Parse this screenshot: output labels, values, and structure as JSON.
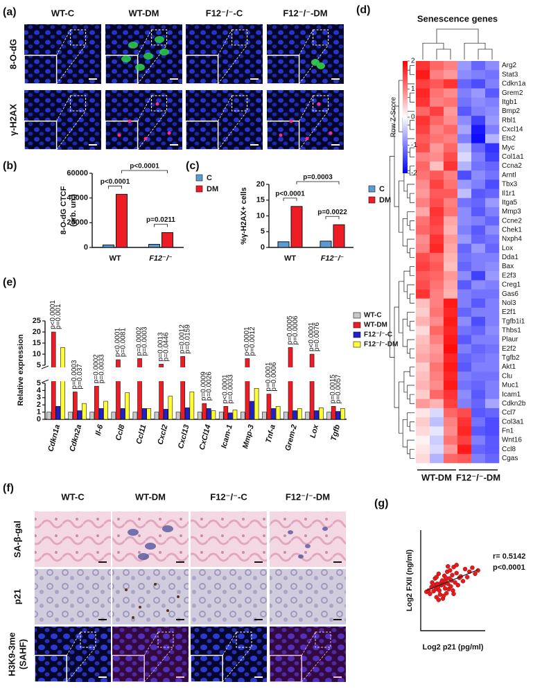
{
  "panel_labels": [
    "(a)",
    "(b)",
    "(c)",
    "(d)",
    "(e)",
    "(f)",
    "(g)"
  ],
  "panel_a": {
    "columns": [
      "WT-C",
      "WT-DM",
      "F12⁻/⁻-C",
      "F12⁻/⁻-DM"
    ],
    "rows": [
      "8-O-dG",
      "γ-H2AX"
    ]
  },
  "panel_f": {
    "columns": [
      "WT-C",
      "WT-DM",
      "F12⁻/⁻-C",
      "F12⁻/⁻-DM"
    ],
    "rows": [
      [
        "SA-β-gal"
      ],
      [
        "p21"
      ],
      [
        "H3K9-3me",
        "(SAHF)"
      ]
    ]
  },
  "chart_data": [
    {
      "type": "bar",
      "categories": [
        "WT",
        "F12⁻/⁻"
      ],
      "series": [
        {
          "name": "C",
          "color": "#5b9bd5",
          "values": [
            2000,
            2500
          ]
        },
        {
          "name": "DM",
          "color": "#ee1c25",
          "values": [
            43000,
            12000
          ]
        }
      ],
      "ylim": [
        0,
        60000
      ],
      "yticks": [
        0,
        20000,
        40000,
        60000
      ],
      "y_label": [
        "8-O-dG CTCF",
        "(arb. un.)"
      ],
      "annotations": [
        "p<0.0001",
        "p=0.0211",
        "p<0.0001"
      ]
    },
    {
      "type": "bar",
      "categories": [
        "WT",
        "F12⁻/⁻"
      ],
      "series": [
        {
          "name": "C",
          "color": "#5b9bd5",
          "values": [
            1.8,
            2.0
          ]
        },
        {
          "name": "DM",
          "color": "#ee1c25",
          "values": [
            13.0,
            7.2
          ]
        }
      ],
      "ylim": [
        0,
        20
      ],
      "yticks": [
        0,
        5,
        10,
        15,
        20
      ],
      "y_label": [
        "%γ-H2AX+ cells"
      ],
      "annotations": [
        "p<0.0001",
        "p=0.0022",
        "p=0.0003"
      ]
    },
    {
      "type": "heatmap",
      "title": "Senescence genes",
      "colorbar_label": "Row Z-Score",
      "zlim": [
        -2,
        2
      ],
      "zticks": [
        2,
        1,
        0,
        -1,
        -2
      ],
      "colors": [
        "#0000ff",
        "#ffffff",
        "#ff0000"
      ],
      "column_groups": [
        "WT-DM",
        "F12⁻/⁻-DM"
      ],
      "rows": [
        "Arg2",
        "Stat3",
        "Cdkn1a",
        "Grem2",
        "Itgb1",
        "Bmp2",
        "Rbl1",
        "Cxcl14",
        "Ets2",
        "Myc",
        "Col1a1",
        "Ccna2",
        "Arntl",
        "Tbx3",
        "Il1r1",
        "Itga5",
        "Mmp3",
        "Ccne2",
        "Chek1",
        "Nxph4",
        "Lox",
        "Dda1",
        "Bax",
        "E2f3",
        "Creg1",
        "Gas6",
        "Nol3",
        "E2f1",
        "Tgfb1i1",
        "Thbs1",
        "Plaur",
        "E2f2",
        "Tgfb2",
        "Akt1",
        "Clu",
        "Muc1",
        "Icam1",
        "Cdkn2b",
        "Ccl7",
        "Col3a1",
        "Fn1",
        "Wnt16",
        "Ccl8",
        "Cgas"
      ],
      "values": [
        [
          1.6,
          1.2,
          1.0,
          -0.8,
          -1.2,
          -0.9
        ],
        [
          1.8,
          1.0,
          0.8,
          -0.9,
          -1.0,
          -1.1
        ],
        [
          1.5,
          1.3,
          1.6,
          -1.2,
          -1.4,
          -1.0
        ],
        [
          1.7,
          1.1,
          0.9,
          -1.0,
          -0.8,
          -1.3
        ],
        [
          1.6,
          1.0,
          1.1,
          -1.1,
          -0.9,
          -1.0
        ],
        [
          1.2,
          1.5,
          0.8,
          -1.3,
          -1.0,
          -0.9
        ],
        [
          1.6,
          1.2,
          0.9,
          -0.9,
          -1.5,
          -0.8
        ],
        [
          1.5,
          1.0,
          1.2,
          -0.7,
          -1.8,
          -1.0
        ],
        [
          1.3,
          1.1,
          1.0,
          -1.0,
          -1.9,
          -0.6
        ],
        [
          1.4,
          0.8,
          1.2,
          -0.5,
          -1.2,
          -1.6
        ],
        [
          1.0,
          0.9,
          1.4,
          -0.3,
          -1.0,
          -1.5
        ],
        [
          1.2,
          0.5,
          1.6,
          -0.6,
          -1.1,
          -1.2
        ],
        [
          1.1,
          1.3,
          1.0,
          -1.4,
          -0.9,
          -1.1
        ],
        [
          0.9,
          1.5,
          1.1,
          -0.8,
          -1.0,
          -1.4
        ],
        [
          0.8,
          1.3,
          1.3,
          -0.5,
          -1.3,
          -1.2
        ],
        [
          1.0,
          1.4,
          1.0,
          -1.1,
          -1.2,
          -0.8
        ],
        [
          0.7,
          1.6,
          1.1,
          -0.9,
          -1.3,
          -1.0
        ],
        [
          1.1,
          1.5,
          0.7,
          -0.9,
          -1.0,
          -1.2
        ],
        [
          1.2,
          1.4,
          0.6,
          -1.0,
          -1.3,
          -0.9
        ],
        [
          0.9,
          1.6,
          0.8,
          -0.8,
          -1.2,
          -1.1
        ],
        [
          1.0,
          1.7,
          0.7,
          -1.2,
          -0.8,
          -1.2
        ],
        [
          1.4,
          1.2,
          0.6,
          -1.1,
          -1.0,
          -1.0
        ],
        [
          1.5,
          1.3,
          0.5,
          -1.2,
          -1.0,
          -0.9
        ],
        [
          1.3,
          1.2,
          0.8,
          -0.9,
          -1.5,
          -0.8
        ],
        [
          1.4,
          1.1,
          0.7,
          -1.3,
          -0.9,
          -1.0
        ],
        [
          1.6,
          1.0,
          0.6,
          -1.0,
          -1.1,
          -1.1
        ],
        [
          0.5,
          1.0,
          1.8,
          -1.0,
          -1.3,
          -1.0
        ],
        [
          0.4,
          1.1,
          1.7,
          -1.2,
          -1.0,
          -1.0
        ],
        [
          0.6,
          0.9,
          1.8,
          -0.9,
          -1.4,
          -1.0
        ],
        [
          0.3,
          1.2,
          1.7,
          -1.1,
          -1.2,
          -0.9
        ],
        [
          0.5,
          1.0,
          1.8,
          -1.3,
          -1.0,
          -1.0
        ],
        [
          0.6,
          0.8,
          1.9,
          -1.0,
          -1.2,
          -1.1
        ],
        [
          0.7,
          0.9,
          1.7,
          -1.2,
          -1.1,
          -1.0
        ],
        [
          0.4,
          1.1,
          1.8,
          -1.3,
          -1.0,
          -1.0
        ],
        [
          0.5,
          1.0,
          1.7,
          -1.0,
          -1.1,
          -1.1
        ],
        [
          0.6,
          0.9,
          1.8,
          -1.1,
          -1.2,
          -1.0
        ],
        [
          0.4,
          1.2,
          1.6,
          -0.9,
          -1.3,
          -1.0
        ],
        [
          0.8,
          0.6,
          1.5,
          -1.0,
          -1.2,
          -0.7
        ],
        [
          0.2,
          -0.3,
          1.2,
          1.4,
          -1.3,
          -1.2
        ],
        [
          0.4,
          -0.5,
          1.0,
          1.6,
          -1.1,
          -1.4
        ],
        [
          0.3,
          -0.2,
          0.9,
          1.7,
          -1.3,
          -1.4
        ],
        [
          0.1,
          -0.4,
          1.1,
          1.5,
          -1.0,
          -1.3
        ],
        [
          0.2,
          -0.3,
          0.8,
          1.8,
          -1.2,
          -1.3
        ],
        [
          0.3,
          -0.6,
          1.2,
          1.3,
          -1.0,
          -1.2
        ]
      ]
    },
    {
      "type": "bar",
      "y_label": "Relative expression",
      "categories": [
        "Cdkn1a",
        "Cdkn2a",
        "Il-6",
        "Ccl8",
        "Ccl11",
        "Cxcl2",
        "Cxcl13",
        "CxCl14",
        "Icam-1",
        "Mmp-3",
        "Tnf-a",
        "Grem-2",
        "Lox",
        "Tgfb"
      ],
      "series": [
        {
          "name": "WT-C",
          "color": "#c8c8c8",
          "values": [
            1,
            1,
            1,
            1,
            1,
            1,
            1,
            1,
            1,
            1,
            1,
            1,
            1,
            1
          ]
        },
        {
          "name": "WT-DM",
          "color": "#ee1c25",
          "values": [
            20,
            3.8,
            4.6,
            7.5,
            8,
            5.5,
            9,
            2.2,
            1.8,
            8,
            3.5,
            13,
            10,
            1.8
          ]
        },
        {
          "name": "F12⁻/⁻-C",
          "color": "#1f1fd0",
          "values": [
            1.8,
            1.2,
            1.5,
            1.5,
            1.5,
            1.4,
            1.6,
            1.5,
            0.9,
            2.5,
            1.5,
            1.2,
            1.2,
            1.1
          ]
        },
        {
          "name": "F12⁻/⁻-DM",
          "color": "#ffff33",
          "values": [
            13,
            2.2,
            2.5,
            3.7,
            1.5,
            3.2,
            3.8,
            1.2,
            1.3,
            4.3,
            1.8,
            1.5,
            1.6,
            1.5
          ]
        }
      ],
      "y_segments": [
        {
          "ylim": [
            0,
            5
          ],
          "yticks": [
            0,
            1,
            2,
            3,
            4,
            5
          ]
        },
        {
          "ylim": [
            5,
            25
          ],
          "yticks": [
            5,
            10,
            15,
            20,
            25
          ]
        }
      ],
      "annotations": [
        [
          "p<0.0001",
          "p=0.001"
        ],
        [
          "p=0.0003",
          "p=0.037"
        ],
        [
          "p=0.0002",
          "p=0.0033"
        ],
        [
          "p<0.0001",
          "p=0.0081"
        ],
        [
          "p=0.0002",
          "p=0.0003"
        ],
        [
          "p=0.0013",
          "p=0.0446"
        ],
        [
          "p=0.0012",
          "p=0.0159"
        ],
        [
          "p=0.0009",
          "p=0.0026"
        ],
        [
          "p<0.0001",
          "p=0.0033"
        ],
        [
          "p<0.0001",
          "p=0.0012"
        ],
        [
          "p=0.0001",
          "p=0.0006"
        ],
        [
          "p=0.0005",
          "p=0.0006"
        ],
        [
          "p<0.0001",
          "p=0.0076"
        ],
        [
          "p=0.0015",
          "p=0.0057"
        ]
      ]
    },
    {
      "type": "scatter",
      "color": "#e41a1c",
      "x_label": "Log2 p21 (pg/ml)",
      "y_label": "Log2 FXII (ng/ml)",
      "annotations": [
        "r= 0.5142",
        "p<0.0001"
      ],
      "xlim": [
        -2,
        7
      ],
      "ylim": [
        0,
        15
      ],
      "x": [
        -1.2,
        -0.9,
        -0.7,
        -0.5,
        -0.4,
        -0.2,
        -0.1,
        0,
        0.1,
        0.2,
        0.3,
        0.4,
        0.5,
        0.6,
        0.7,
        0.8,
        0.9,
        1.0,
        1.1,
        1.2,
        1.3,
        1.4,
        1.5,
        1.6,
        1.7,
        1.8,
        1.9,
        2.0,
        2.1,
        2.2,
        2.3,
        2.4,
        2.5,
        2.6,
        2.8,
        3.0,
        3.2,
        3.4,
        3.6,
        3.9,
        4.2,
        4.5,
        4.8,
        5.2,
        5.6,
        6.0,
        0.5,
        1.2,
        1.8,
        2.6,
        0.2,
        1.5,
        3.0,
        -0.3
      ],
      "y": [
        5.8,
        6.0,
        5.5,
        6.5,
        7.2,
        5.9,
        6.8,
        7.8,
        6.2,
        5.0,
        7.0,
        6.5,
        8.5,
        6.0,
        5.4,
        7.1,
        6.8,
        7.5,
        4.8,
        6.9,
        8.2,
        6.3,
        7.4,
        5.6,
        8.8,
        7.0,
        6.2,
        7.8,
        9.0,
        6.6,
        7.5,
        8.3,
        6.0,
        9.5,
        7.2,
        8.6,
        6.8,
        7.9,
        8.1,
        7.4,
        9.2,
        8.0,
        8.8,
        9.4,
        8.5,
        9.0,
        4.6,
        5.2,
        9.6,
        5.5,
        8.0,
        7.9,
        9.8,
        6.9
      ],
      "trend_line": {
        "x": [
          -1.2,
          6.0
        ],
        "y": [
          6.0,
          9.1
        ]
      }
    }
  ]
}
